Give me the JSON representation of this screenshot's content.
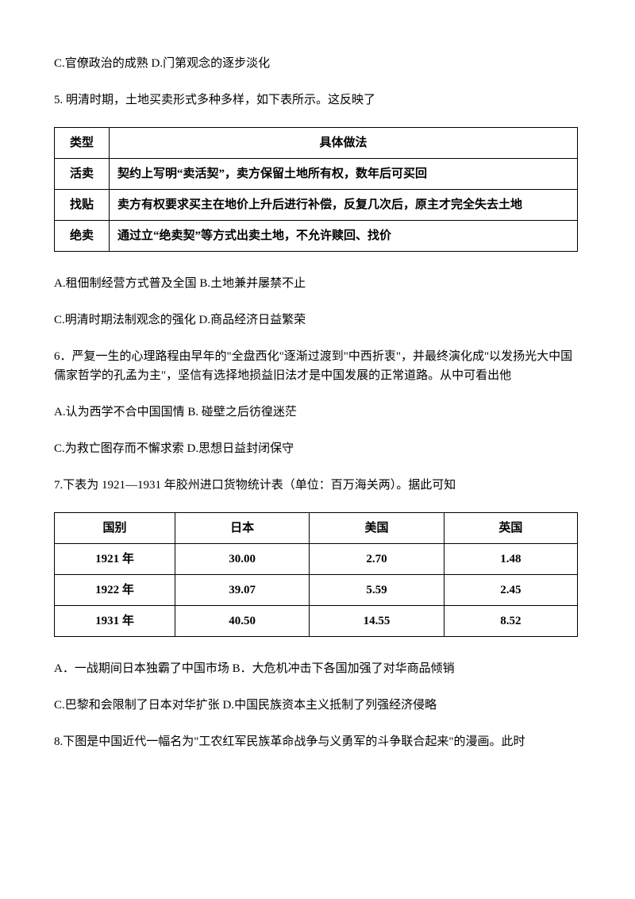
{
  "lines": {
    "l1": "C.官僚政治的成熟 D.门第观念的逐步淡化",
    "l2": "5.  明清时期，土地买卖形式多种多样，如下表所示。这反映了",
    "l3": "A.租佃制经营方式普及全国 B.土地兼并屡禁不止",
    "l4": "C.明清时期法制观念的强化  D.商品经济日益繁荣",
    "l5": "6．严复一生的心理路程由早年的\"全盘西化\"逐渐过渡到\"中西折衷\"，并最终演化成\"以发扬光大中国儒家哲学的孔孟为主\"，坚信有选择地损益旧法才是中国发展的正常道路。从中可看出他",
    "l6": "A.认为西学不合中国国情  B.  碰壁之后彷徨迷茫",
    "l7": "C.为救亡图存而不懈求索 D.思想日益封闭保守",
    "l8": "7.下表为 1921—1931  年胶州进口货物统计表（单位：百万海关两）。据此可知",
    "l9": "A．一战期间日本独霸了中国市场  B．大危机冲击下各国加强了对华商品倾销",
    "l10": "C.巴黎和会限制了日本对华扩张  D.中国民族资本主义抵制了列强经济侵略",
    "l11": "8.下图是中国近代一幅名为\"工农红军民族革命战争与义勇军的斗争联合起来\"的漫画。此时"
  },
  "table1": {
    "header": {
      "type": "类型",
      "detail": "具体做法"
    },
    "rows": [
      {
        "type": "活卖",
        "detail": "契约上写明“卖活契”，卖方保留土地所有权，数年后可买回"
      },
      {
        "type": "找贴",
        "detail": "卖方有权要求买主在地价上升后进行补偿，反复几次后，原主才完全失去土地"
      },
      {
        "type": "绝卖",
        "detail": "通过立“绝卖契”等方式出卖土地，不允许赎回、找价"
      }
    ]
  },
  "table2": {
    "header": {
      "c1": "国别",
      "c2": "日本",
      "c3": "美国",
      "c4": "英国"
    },
    "rows": [
      {
        "c1": "1921 年",
        "c2": "30.00",
        "c3": "2.70",
        "c4": "1.48"
      },
      {
        "c1": "1922 年",
        "c2": "39.07",
        "c3": "5.59",
        "c4": "2.45"
      },
      {
        "c1": "1931 年",
        "c2": "40.50",
        "c3": "14.55",
        "c4": "8.52"
      }
    ]
  }
}
